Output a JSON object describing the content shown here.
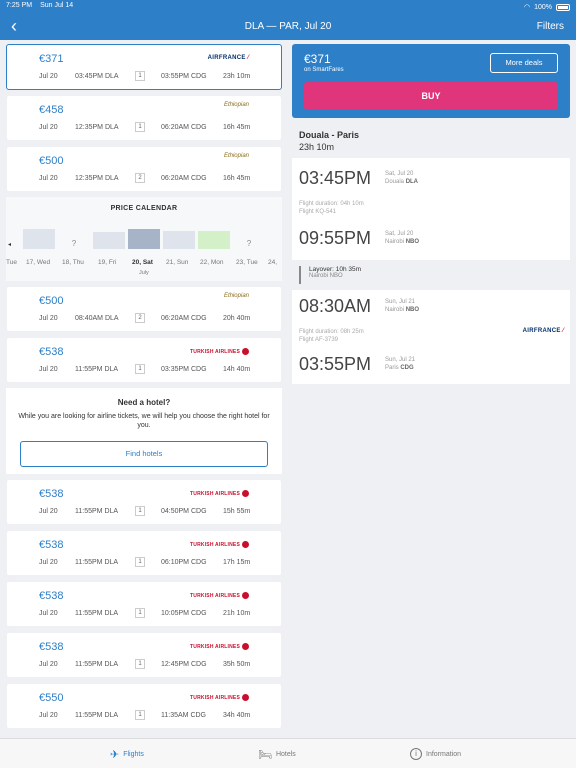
{
  "status": {
    "time": "7:25 PM",
    "date": "Sun Jul 14",
    "battery": "100%"
  },
  "header": {
    "title": "DLA — PAR, Jul 20",
    "filters_label": "Filters"
  },
  "flights_top": [
    {
      "price": "€371",
      "date": "Jul 20",
      "dep": "03:45PM DLA",
      "stops": "1",
      "arr": "03:55PM CDG",
      "dur": "23h 10m",
      "airline": "AIRFRANCE"
    },
    {
      "price": "€458",
      "date": "Jul 20",
      "dep": "12:35PM DLA",
      "stops": "1",
      "arr": "06:20AM CDG",
      "dur": "16h 45m",
      "airline": "Ethiopian"
    },
    {
      "price": "€500",
      "date": "Jul 20",
      "dep": "12:35PM DLA",
      "stops": "2",
      "arr": "06:20AM CDG",
      "dur": "16h 45m",
      "airline": "Ethiopian"
    }
  ],
  "calendar": {
    "title": "PRICE CALENDAR",
    "days": [
      "Tue",
      "17, Wed",
      "18, Thu",
      "19, Fri",
      "20, Sat",
      "21, Sun",
      "22, Mon",
      "23, Tue",
      "24,"
    ],
    "month": "July"
  },
  "flights_mid": [
    {
      "price": "€500",
      "date": "Jul 20",
      "dep": "08:40AM DLA",
      "stops": "2",
      "arr": "06:20AM CDG",
      "dur": "20h 40m",
      "airline": "Ethiopian"
    },
    {
      "price": "€538",
      "date": "Jul 20",
      "dep": "11:55PM DLA",
      "stops": "1",
      "arr": "03:35PM CDG",
      "dur": "14h 40m",
      "airline": "TURKISH AIRLINES"
    }
  ],
  "hotel": {
    "title": "Need a hotel?",
    "text": "While you are looking for airline tickets, we will help you choose the right hotel for you.",
    "button": "Find hotels"
  },
  "flights_bottom": [
    {
      "price": "€538",
      "date": "Jul 20",
      "dep": "11:55PM DLA",
      "stops": "1",
      "arr": "04:50PM CDG",
      "dur": "15h 55m",
      "airline": "TURKISH AIRLINES"
    },
    {
      "price": "€538",
      "date": "Jul 20",
      "dep": "11:55PM DLA",
      "stops": "1",
      "arr": "06:10PM CDG",
      "dur": "17h 15m",
      "airline": "TURKISH AIRLINES"
    },
    {
      "price": "€538",
      "date": "Jul 20",
      "dep": "11:55PM DLA",
      "stops": "1",
      "arr": "10:05PM CDG",
      "dur": "21h 10m",
      "airline": "TURKISH AIRLINES"
    },
    {
      "price": "€538",
      "date": "Jul 20",
      "dep": "11:55PM DLA",
      "stops": "1",
      "arr": "12:45PM CDG",
      "dur": "35h 50m",
      "airline": "TURKISH AIRLINES"
    },
    {
      "price": "€550",
      "date": "Jul 20",
      "dep": "11:55PM DLA",
      "stops": "1",
      "arr": "11:35AM CDG",
      "dur": "34h 40m",
      "airline": "TURKISH AIRLINES"
    }
  ],
  "detail": {
    "price": "€371",
    "source": "on SmartFares",
    "more_deals": "More deals",
    "buy": "BUY",
    "route": "Douala - Paris",
    "total_duration": "23h 10m",
    "seg1": {
      "dep_time": "03:45PM",
      "dep_date": "Sat, Jul 20",
      "dep_city": "Douala",
      "dep_code": "DLA",
      "duration": "Flight duration: 04h 10m",
      "flight": "Flight KQ-541",
      "arr_time": "09:55PM",
      "arr_date": "Sat, Jul 20",
      "arr_city": "Nairobi",
      "arr_code": "NBO"
    },
    "layover": {
      "title": "Layover: 10h 35m",
      "city": "Nairobi NBO"
    },
    "seg2": {
      "dep_time": "08:30AM",
      "dep_date": "Sun, Jul 21",
      "dep_city": "Nairobi",
      "dep_code": "NBO",
      "duration": "Flight duration: 08h 25m",
      "flight": "Flight AF-3739",
      "arr_time": "03:55PM",
      "arr_date": "Sun, Jul 21",
      "arr_city": "Paris",
      "arr_code": "CDG",
      "airline": "AIRFRANCE"
    }
  },
  "tabs": {
    "flights": "Flights",
    "hotels": "Hotels",
    "information": "Information"
  },
  "colors": {
    "brand": "#2d7fc8",
    "buy": "#e0357a"
  }
}
